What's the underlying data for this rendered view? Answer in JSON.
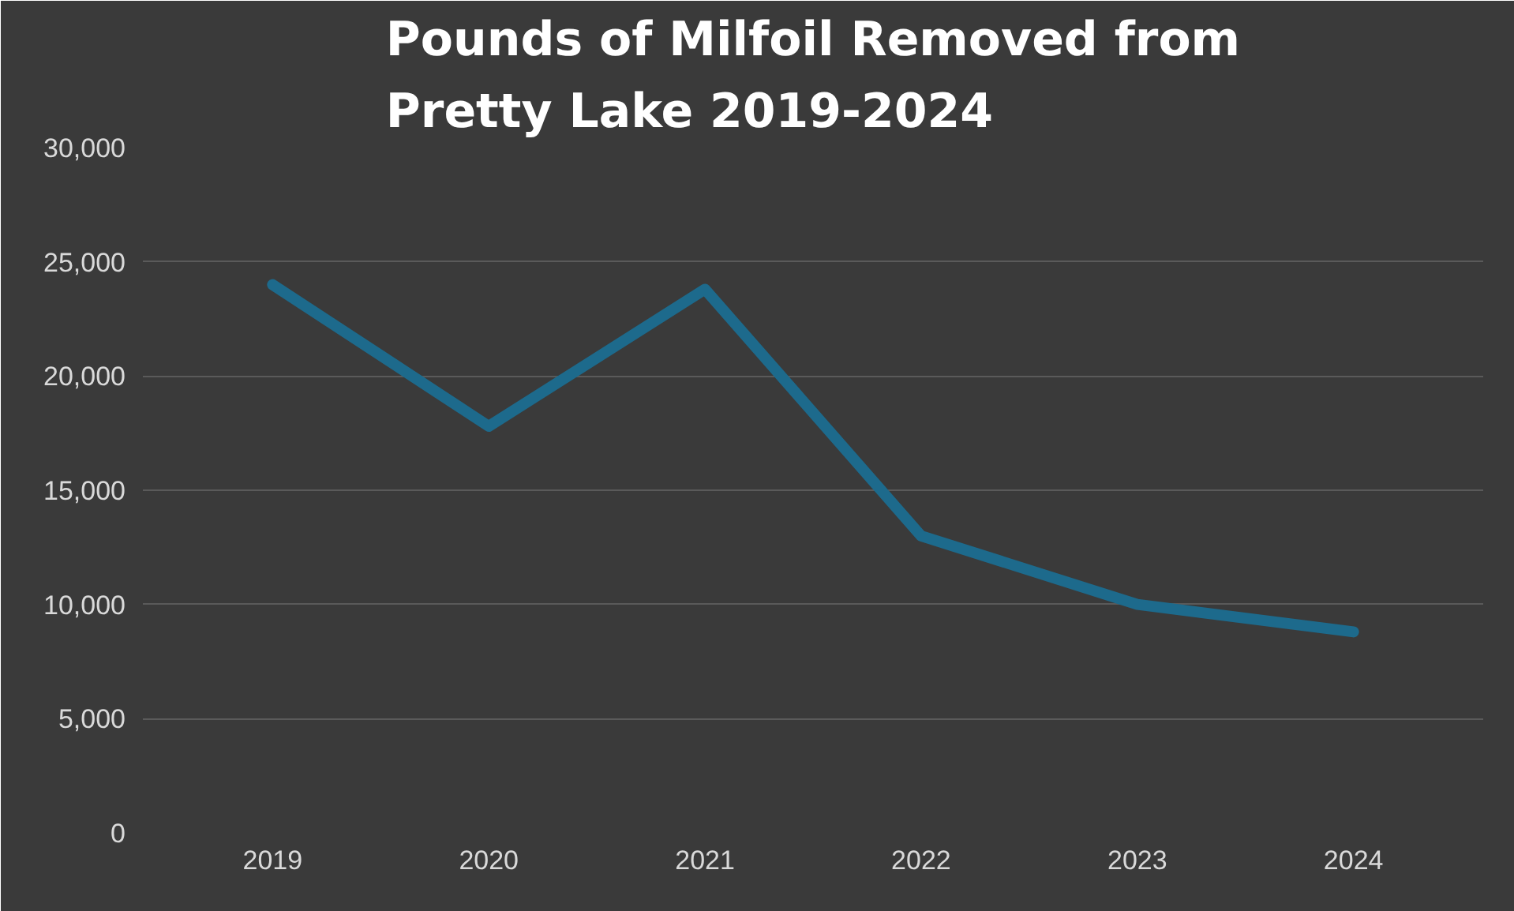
{
  "chart_data": {
    "type": "line",
    "title": "Pounds of Milfoil Removed from\nPretty Lake 2019-2024",
    "categories": [
      "2019",
      "2020",
      "2021",
      "2022",
      "2023",
      "2024"
    ],
    "series": [
      {
        "color": "#1d6a8c",
        "values": [
          24000,
          17800,
          23800,
          13000,
          10000,
          8800
        ]
      }
    ],
    "ylim": [
      0,
      30000
    ],
    "yticks": [
      {
        "value": 0,
        "label": "0"
      },
      {
        "value": 5000,
        "label": "5,000"
      },
      {
        "value": 10000,
        "label": "10,000"
      },
      {
        "value": 15000,
        "label": "15,000"
      },
      {
        "value": 20000,
        "label": "20,000"
      },
      {
        "value": 25000,
        "label": "25,000"
      },
      {
        "value": 30000,
        "label": "30,000"
      }
    ],
    "grid": "y",
    "marker": "none",
    "line_style": "solid"
  }
}
